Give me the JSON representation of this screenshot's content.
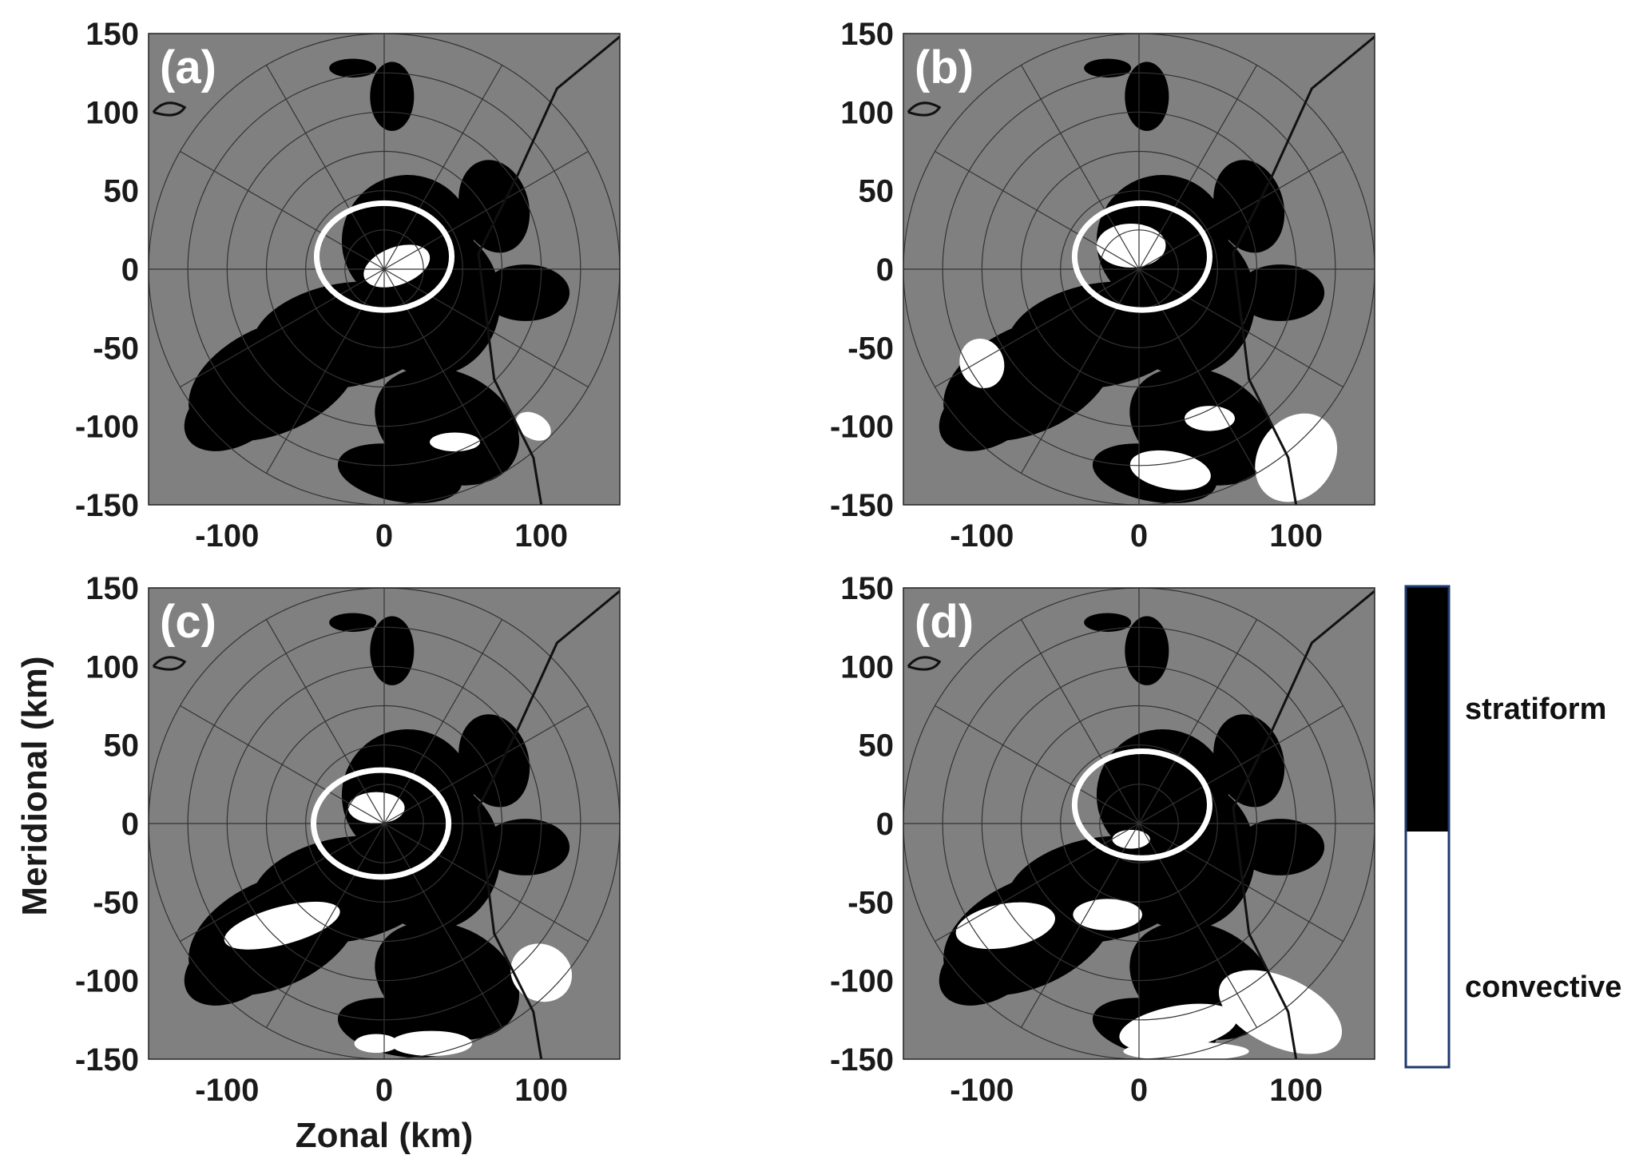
{
  "colors": {
    "background_no_echo": "#808080",
    "stratiform": "#000000",
    "convective": "#ffffff",
    "range_ring_color": "#333333",
    "highlight_ellipse": "#ffffff",
    "colorbar_border": "#1f3a6e"
  },
  "axes": {
    "xlabel": "Zonal (km)",
    "ylabel": "Meridional (km)"
  },
  "chart_data": [
    {
      "type": "heatmap",
      "panel": "(a)",
      "xlim": [
        -150,
        150
      ],
      "ylim": [
        -150,
        150
      ],
      "xticks": [
        -100,
        0,
        100
      ],
      "yticks": [
        150,
        100,
        50,
        0,
        -50,
        -100,
        -150
      ],
      "classes": [
        "stratiform",
        "convective"
      ],
      "range_rings_km": [
        25,
        50,
        75,
        100,
        125,
        150
      ],
      "highlight_ellipse": {
        "center": [
          0,
          8
        ],
        "semi_axes": [
          43,
          34
        ]
      }
    },
    {
      "type": "heatmap",
      "panel": "(b)",
      "xlim": [
        -150,
        150
      ],
      "ylim": [
        -150,
        150
      ],
      "xticks": [
        -100,
        0,
        100
      ],
      "yticks": [
        150,
        100,
        50,
        0,
        -50,
        -100,
        -150
      ],
      "classes": [
        "stratiform",
        "convective"
      ],
      "range_rings_km": [
        25,
        50,
        75,
        100,
        125,
        150
      ],
      "highlight_ellipse": {
        "center": [
          2,
          8
        ],
        "semi_axes": [
          43,
          34
        ]
      }
    },
    {
      "type": "heatmap",
      "panel": "(c)",
      "xlim": [
        -150,
        150
      ],
      "ylim": [
        -150,
        150
      ],
      "xticks": [
        -100,
        0,
        100
      ],
      "yticks": [
        150,
        100,
        50,
        0,
        -50,
        -100,
        -150
      ],
      "classes": [
        "stratiform",
        "convective"
      ],
      "range_rings_km": [
        25,
        50,
        75,
        100,
        125,
        150
      ],
      "highlight_ellipse": {
        "center": [
          -2,
          0
        ],
        "semi_axes": [
          43,
          34
        ]
      }
    },
    {
      "type": "heatmap",
      "panel": "(d)",
      "xlim": [
        -150,
        150
      ],
      "ylim": [
        -150,
        150
      ],
      "xticks": [
        -100,
        0,
        100
      ],
      "yticks": [
        150,
        100,
        50,
        0,
        -50,
        -100,
        -150
      ],
      "classes": [
        "stratiform",
        "convective"
      ],
      "range_rings_km": [
        25,
        50,
        75,
        100,
        125,
        150
      ],
      "highlight_ellipse": {
        "center": [
          2,
          12
        ],
        "semi_axes": [
          43,
          34
        ]
      }
    }
  ],
  "legend": {
    "items": [
      {
        "label": "stratiform",
        "color": "#000000"
      },
      {
        "label": "convective",
        "color": "#ffffff"
      }
    ]
  }
}
